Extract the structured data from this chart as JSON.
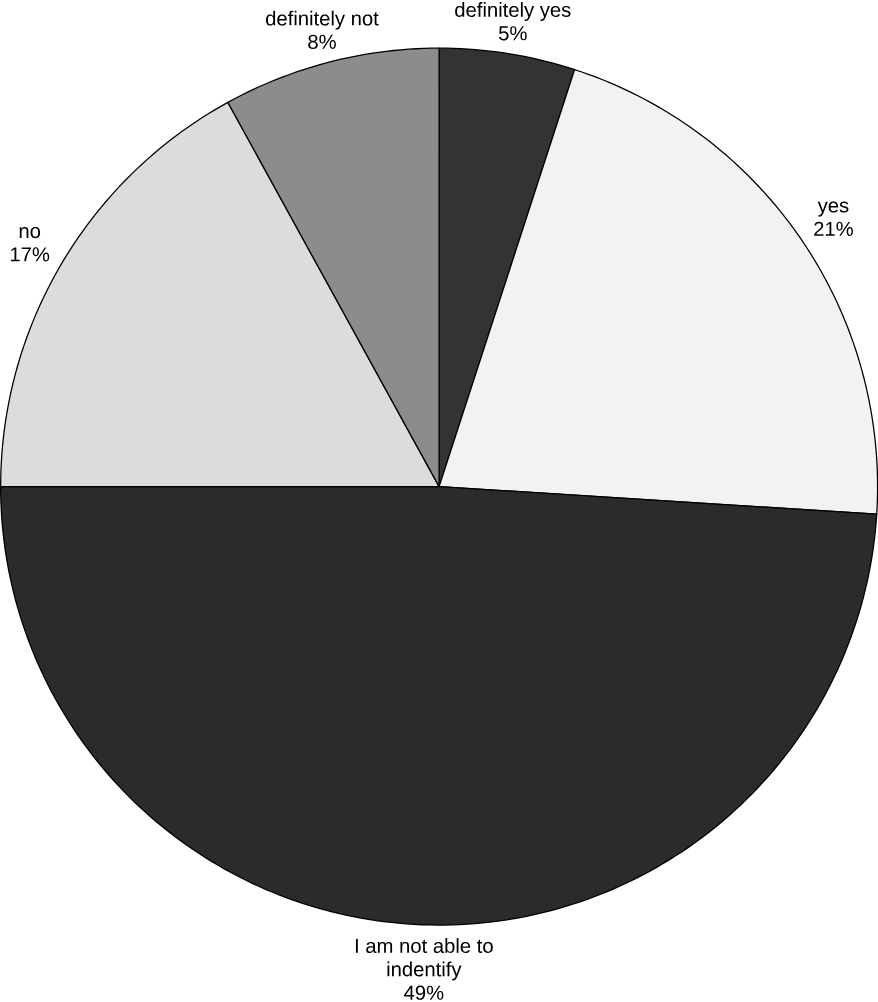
{
  "chart_data": {
    "type": "pie",
    "categories": [
      "definitely yes",
      "yes",
      "I am not able to indentify",
      "no",
      "definitely not"
    ],
    "values": [
      5,
      21,
      49,
      17,
      8
    ],
    "colors": [
      "#333333",
      "#f2f2f2",
      "#2b2b2b",
      "#dcdcdc",
      "#8c8c8c"
    ],
    "value_labels": [
      "5%",
      "21%",
      "49%",
      "17%",
      "8%"
    ]
  }
}
